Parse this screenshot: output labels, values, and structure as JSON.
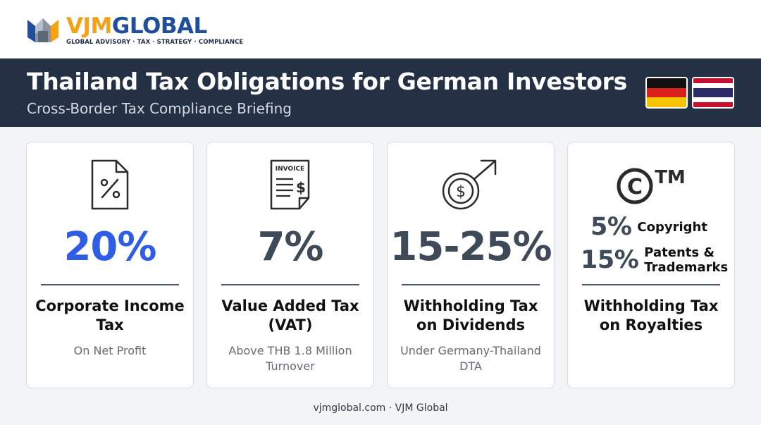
{
  "brand": {
    "name_part1": "VJM",
    "name_part2": "GLOBAL",
    "tagline": "GLOBAL ADVISORY · TAX · STRATEGY · COMPLIANCE",
    "colors": {
      "orange": "#f5a11a",
      "blue": "#1f4e9c"
    }
  },
  "banner": {
    "title": "Thailand Tax Obligations for German Investors",
    "subtitle": "Cross-Border Tax Compliance Briefing",
    "flags": [
      "germany-flag",
      "thailand-flag"
    ]
  },
  "cards": [
    {
      "icon": "percent-document-icon",
      "value": "20%",
      "label": "Corporate Income Tax",
      "note": "On Net Profit",
      "value_color": "#2f5de6"
    },
    {
      "icon": "invoice-icon",
      "icon_text": "INVOICE",
      "value": "7%",
      "label": "Value Added Tax (VAT)",
      "note": "Above THB 1.8 Million Turnover"
    },
    {
      "icon": "dollar-growth-icon",
      "value": "15-25%",
      "label": "Withholding Tax on Dividends",
      "note": "Under Germany-Thailand DTA"
    },
    {
      "icon": "copyright-trademark-icon",
      "icon_text": "TM",
      "rates": [
        {
          "value": "5%",
          "label": "Copyright"
        },
        {
          "value": "15%",
          "label": "Patents & Trademarks"
        }
      ],
      "label": "Withholding Tax on Royalties"
    }
  ],
  "footer": {
    "text": "vjmglobal.com · VJM Global"
  }
}
